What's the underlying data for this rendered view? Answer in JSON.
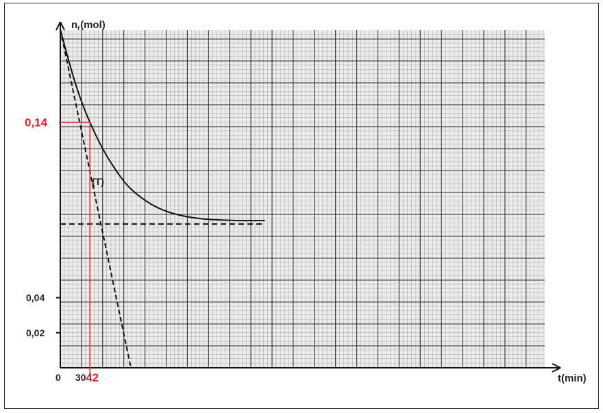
{
  "chart_data": {
    "type": "line",
    "y_axis_label": "n",
    "y_axis_label_sub": "r",
    "y_axis_unit": "(mol)",
    "x_axis_label": "t(min)",
    "origin_label": "0",
    "y_ticks": [
      {
        "value": 0.04,
        "label": "0,04"
      },
      {
        "value": 0.02,
        "label": "0,02"
      }
    ],
    "x_ticks": [
      {
        "value": 30,
        "label": "30"
      }
    ],
    "marked_point": {
      "x": 42,
      "y": 0.14,
      "x_label": "42",
      "y_label": "0,14"
    },
    "tangent_label": "(T)",
    "xlim": [
      0,
      290
    ],
    "ylim": [
      0,
      0.2
    ],
    "series": [
      {
        "kind": "curve",
        "x": [
          0,
          10,
          20,
          30,
          42,
          60,
          80,
          100,
          130,
          160,
          200,
          250,
          290
        ],
        "y": [
          0.193,
          0.178,
          0.164,
          0.152,
          0.14,
          0.125,
          0.112,
          0.102,
          0.093,
          0.088,
          0.085,
          0.084,
          0.084
        ]
      },
      {
        "kind": "tangent",
        "x": [
          0,
          100
        ],
        "y": [
          0.193,
          0.0
        ]
      },
      {
        "kind": "asymptote",
        "x": [
          0,
          290
        ],
        "y": [
          0.082,
          0.082
        ]
      }
    ],
    "grid": true
  }
}
